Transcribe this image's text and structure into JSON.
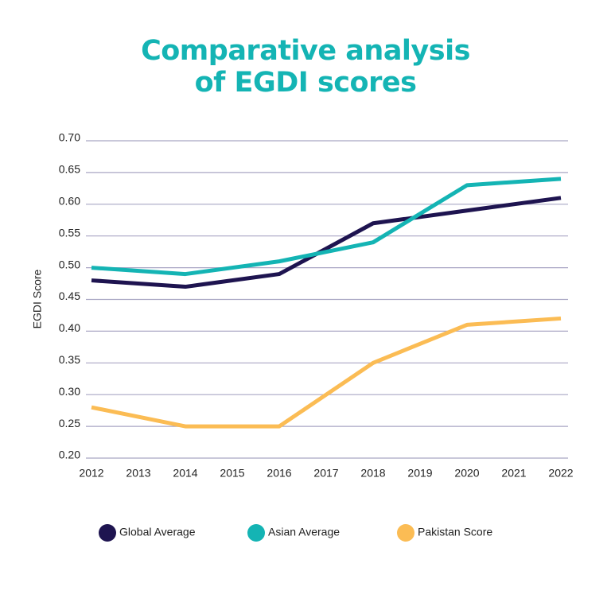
{
  "chart_data": {
    "type": "line",
    "title": "Comparative analysis of EGDI scores",
    "y_label": "EGDI Score",
    "x": [
      2012,
      2014,
      2016,
      2018,
      2020,
      2022
    ],
    "series": [
      {
        "name": "Global Average",
        "color": "#1e1450",
        "values": [
          0.48,
          0.47,
          0.49,
          0.57,
          0.59,
          0.61
        ]
      },
      {
        "name": "Asian Average",
        "color": "#14b4b4",
        "values": [
          0.5,
          0.49,
          0.51,
          0.54,
          0.63,
          0.64
        ]
      },
      {
        "name": "Pakistan Score",
        "color": "#fbbc54",
        "values": [
          0.28,
          0.25,
          0.25,
          0.35,
          0.41,
          0.42
        ]
      }
    ],
    "xlim": [
      2012,
      2022
    ],
    "xticks": [
      2012,
      2013,
      2014,
      2015,
      2016,
      2017,
      2018,
      2019,
      2020,
      2021,
      2022
    ],
    "ylim": [
      0.2,
      0.7
    ],
    "yticks": [
      {
        "value": 0.2,
        "label": "0.20"
      },
      0.25,
      {
        "value": 0.3,
        "label": "0.30"
      },
      0.35,
      {
        "value": 0.4,
        "label": "0.40"
      },
      0.45,
      {
        "value": 0.5,
        "label": "0.50"
      },
      0.55,
      {
        "value": 0.6,
        "label": "0.60"
      },
      0.65,
      {
        "value": 0.7,
        "label": "0.70"
      }
    ],
    "grid": true,
    "legend": "bottom"
  }
}
